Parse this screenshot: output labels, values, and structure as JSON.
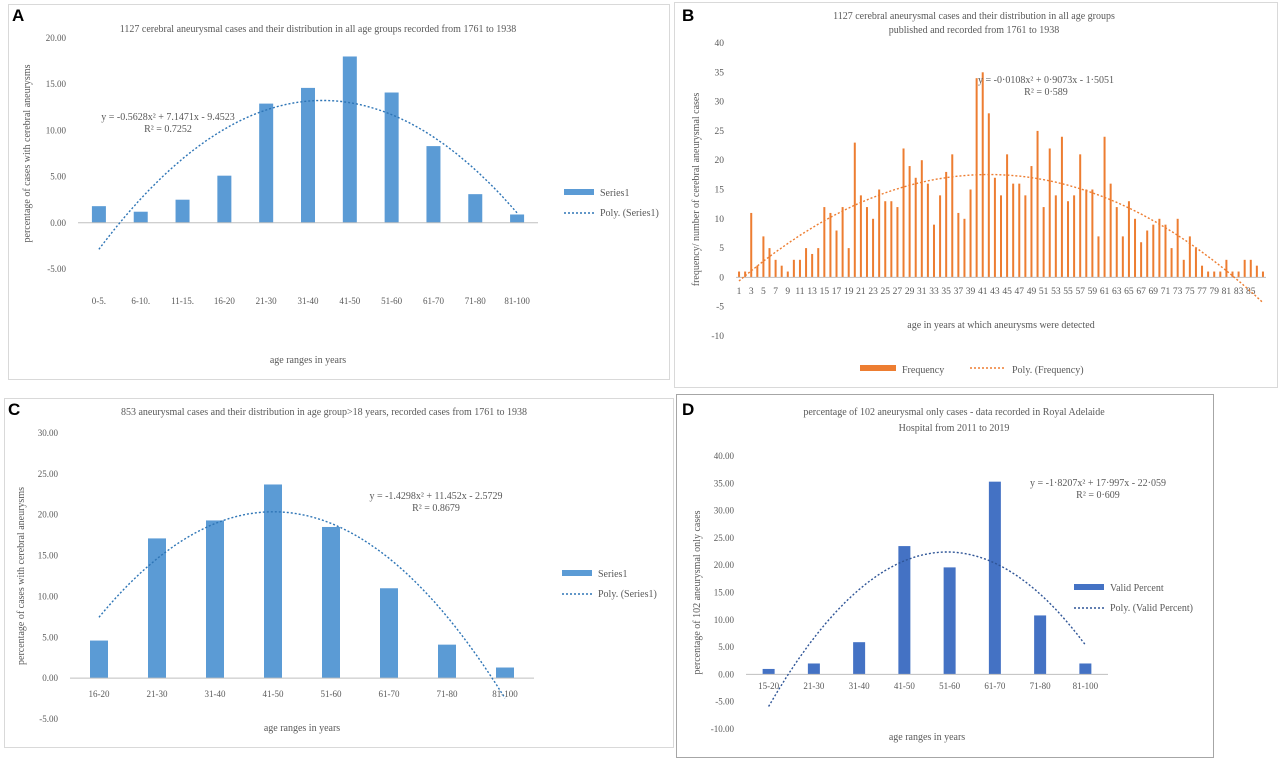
{
  "panels": [
    {
      "label": "A",
      "chart_data": {
        "type": "bar",
        "title": [
          "1127 cerebral aneurysmal cases and their distribution in all age groups recorded from 1761 to 1938"
        ],
        "xlabel": "age ranges in years",
        "ylabel": "percentage of cases with cerebral aneurysms",
        "ylim": [
          -5,
          20
        ],
        "yticks": [
          -5,
          0,
          5,
          10,
          15,
          20
        ],
        "ytick_decimals": 2,
        "categories": [
          "0-5.",
          "6-10.",
          "11-15.",
          "16-20",
          "21-30",
          "31-40",
          "41-50",
          "51-60",
          "61-70",
          "71-80",
          "81-100"
        ],
        "series": [
          {
            "name": "Series1",
            "values": [
              1.8,
              1.2,
              2.5,
              5.1,
              12.9,
              14.6,
              18.0,
              14.1,
              8.3,
              3.1,
              0.9
            ]
          }
        ],
        "trend": {
          "name": "Poly. (Series1)",
          "equation": "y = -0.5628x² + 7.1471x - 9.4523",
          "r2": "R² = 0.7252",
          "coeffs": [
            -0.5628,
            7.1471,
            -9.4523
          ]
        },
        "bar_color": "#5b9bd5",
        "trend_color": "#2e75b6",
        "legend": "right",
        "grid": false
      }
    },
    {
      "label": "B",
      "chart_data": {
        "type": "bar",
        "title": [
          "1127 cerebral aneurysmal cases and their distribution in all age groups",
          "published and recorded from 1761 to 1938"
        ],
        "xlabel": "age in years at which aneurysms were detected",
        "ylabel": "frequency/ number of cerebral aneurysmal cases",
        "ylim": [
          -10,
          40
        ],
        "yticks": [
          -10,
          -5,
          0,
          5,
          10,
          15,
          20,
          25,
          30,
          35,
          40
        ],
        "ytick_decimals": 0,
        "x_start": 1,
        "tick_labels": [
          "1",
          "3",
          "5",
          "7",
          "9",
          "11",
          "13",
          "15",
          "17",
          "19",
          "21",
          "23",
          "25",
          "27",
          "29",
          "31",
          "33",
          "35",
          "37",
          "39",
          "41",
          "43",
          "45",
          "47",
          "49",
          "51",
          "53",
          "55",
          "57",
          "59",
          "61",
          "63",
          "65",
          "67",
          "69",
          "71",
          "73",
          "75",
          "77",
          "79",
          "81",
          "83",
          "85"
        ],
        "series": [
          {
            "name": "Frequency",
            "values": [
              1,
              1,
              11,
              2,
              7,
              5,
              3,
              2,
              1,
              3,
              3,
              5,
              4,
              5,
              12,
              11,
              8,
              12,
              5,
              23,
              14,
              12,
              10,
              15,
              13,
              13,
              12,
              22,
              19,
              17,
              20,
              16,
              9,
              14,
              18,
              21,
              11,
              10,
              15,
              34,
              35,
              28,
              17,
              14,
              21,
              16,
              16,
              14,
              19,
              25,
              12,
              22,
              14,
              24,
              13,
              14,
              21,
              15,
              15,
              7,
              24,
              16,
              12,
              7,
              13,
              10,
              6,
              8,
              9,
              10,
              9,
              5,
              10,
              3,
              7,
              5,
              2,
              1,
              1,
              1,
              3,
              1,
              1,
              3,
              3,
              2,
              1
            ]
          }
        ],
        "trend": {
          "name": "Poly. (Frequency)",
          "equation": "y = -0·0108x² + 0·9073x - 1·5051",
          "r2": "R² = 0·589",
          "coeffs": [
            -0.0108,
            0.9073,
            -1.5051
          ]
        },
        "bar_color": "#ed7d31",
        "trend_color": "#ed7d31",
        "legend": "bottom",
        "grid": false
      }
    },
    {
      "label": "C",
      "chart_data": {
        "type": "bar",
        "title": [
          "853 aneurysmal cases and their distribution in age group>18 years, recorded cases from 1761 to 1938"
        ],
        "xlabel": "age ranges in years",
        "ylabel": "percentage of cases with cerebral aneurysms",
        "ylim": [
          -5,
          30
        ],
        "yticks": [
          -5,
          0,
          5,
          10,
          15,
          20,
          25,
          30
        ],
        "ytick_decimals": 2,
        "categories": [
          "16-20",
          "21-30",
          "31-40",
          "41-50",
          "51-60",
          "61-70",
          "71-80",
          "81-100"
        ],
        "series": [
          {
            "name": "Series1",
            "values": [
              4.6,
              17.1,
              19.3,
              23.7,
              18.5,
              11.0,
              4.1,
              1.3
            ]
          }
        ],
        "trend": {
          "name": "Poly. (Series1)",
          "equation": "y = -1.4298x² + 11.452x - 2.5729",
          "r2": "R² = 0.8679",
          "coeffs": [
            -1.4298,
            11.452,
            -2.5729
          ]
        },
        "bar_color": "#5b9bd5",
        "trend_color": "#2e75b6",
        "legend": "right",
        "grid": false
      }
    },
    {
      "label": "D",
      "chart_data": {
        "type": "bar",
        "title": [
          "percentage of 102 aneurysmal only cases - data recorded in Royal Adelaide",
          "Hospital from 2011 to 2019"
        ],
        "xlabel": "age ranges in years",
        "ylabel": "percentage of 102 aneurysmal only cases",
        "ylim": [
          -10,
          40
        ],
        "yticks": [
          -10,
          -5,
          0,
          5,
          10,
          15,
          20,
          25,
          30,
          35,
          40
        ],
        "ytick_decimals": 2,
        "categories": [
          "15-20",
          "21-30",
          "31-40",
          "41-50",
          "51-60",
          "61-70",
          "71-80",
          "81-100"
        ],
        "series": [
          {
            "name": "Valid Percent",
            "values": [
              1.0,
              2.0,
              5.9,
              23.5,
              19.6,
              35.3,
              10.8,
              2.0
            ]
          }
        ],
        "trend": {
          "name": "Poly. (Valid Percent)",
          "equation": "y = -1·8207x² + 17·997x - 22·059",
          "r2": "R² = 0·609",
          "coeffs": [
            -1.8207,
            17.997,
            -22.059
          ]
        },
        "bar_color": "#4472c4",
        "trend_color": "#2f5597",
        "legend": "right",
        "grid": false
      }
    }
  ]
}
